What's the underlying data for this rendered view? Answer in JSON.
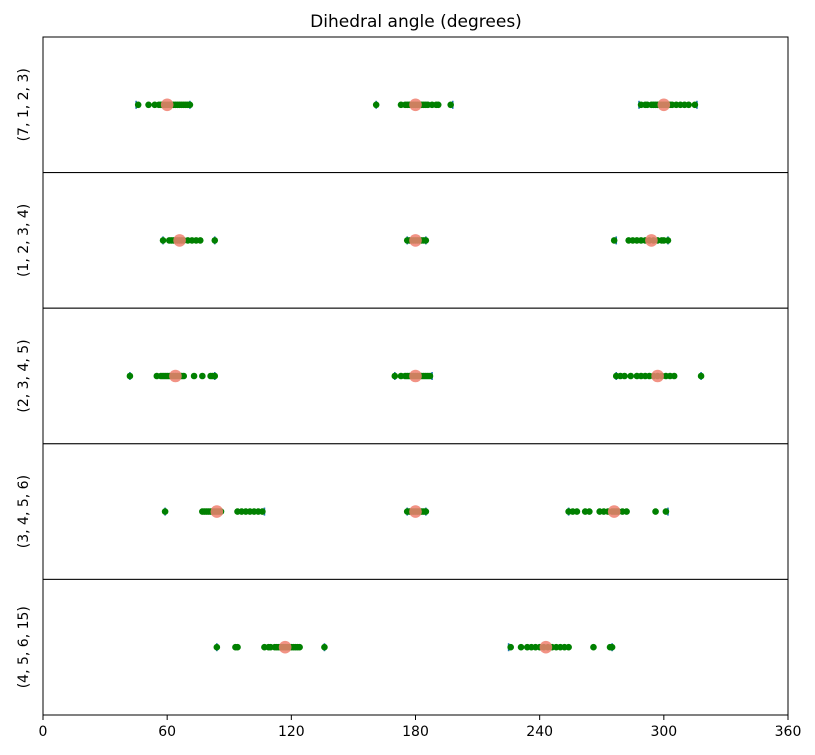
{
  "chart_data": {
    "type": "scatter",
    "title": "Dihedral angle (degrees)",
    "xlabel": "",
    "ylabel": "",
    "xlim": [
      0,
      360
    ],
    "xticks": [
      0,
      60,
      120,
      180,
      240,
      300,
      360
    ],
    "grid": false,
    "colors": {
      "samples": "#008000",
      "reference": "#f08070",
      "bounds": "#1f77b4",
      "frame": "#000000"
    },
    "rows": [
      {
        "label": "(7, 1, 2, 3)",
        "bounds": [
          45,
          71,
          161,
          198,
          288,
          316
        ],
        "samples": [
          46,
          51,
          54,
          56,
          57,
          58,
          59,
          60,
          61,
          62,
          63,
          64,
          65,
          66,
          67,
          68,
          69,
          70,
          71,
          161,
          173,
          175,
          176,
          177,
          178,
          179,
          180,
          181,
          182,
          183,
          184,
          185,
          186,
          188,
          190,
          191,
          197,
          289,
          291,
          292,
          294,
          295,
          296,
          297,
          298,
          299,
          300,
          301,
          302,
          303,
          304,
          306,
          308,
          310,
          312,
          315
        ],
        "reference": [
          60,
          180,
          300
        ]
      },
      {
        "label": "(1, 2, 3, 4)",
        "bounds": [
          58,
          83,
          176,
          185,
          277,
          302
        ],
        "samples": [
          58,
          61,
          62,
          63,
          64,
          65,
          66,
          67,
          68,
          70,
          72,
          74,
          76,
          83,
          176,
          177,
          178,
          179,
          180,
          181,
          182,
          183,
          184,
          185,
          276,
          283,
          285,
          287,
          289,
          291,
          293,
          295,
          297,
          299,
          300,
          302
        ],
        "reference": [
          66,
          180,
          294
        ]
      },
      {
        "label": "(2, 3, 4, 5)",
        "bounds": [
          42,
          83,
          170,
          188,
          277,
          318
        ],
        "samples": [
          42,
          55,
          57,
          58,
          59,
          60,
          61,
          62,
          63,
          64,
          65,
          66,
          67,
          68,
          73,
          77,
          81,
          82,
          83,
          170,
          173,
          175,
          176,
          177,
          178,
          179,
          180,
          181,
          182,
          183,
          184,
          185,
          186,
          187,
          277,
          279,
          281,
          284,
          287,
          289,
          291,
          293,
          295,
          297,
          299,
          301,
          303,
          305,
          318
        ],
        "reference": [
          64,
          180,
          297
        ]
      },
      {
        "label": "(3, 4, 5, 6)",
        "bounds": [
          59,
          107,
          176,
          185,
          254,
          302
        ],
        "samples": [
          59,
          77,
          78,
          79,
          80,
          81,
          82,
          83,
          84,
          85,
          86,
          94,
          96,
          98,
          100,
          102,
          104,
          106,
          176,
          177,
          178,
          179,
          180,
          181,
          182,
          183,
          184,
          185,
          254,
          256,
          258,
          262,
          264,
          269,
          271,
          273,
          275,
          276,
          277,
          278,
          280,
          282,
          296,
          301
        ],
        "reference": [
          84,
          180,
          276
        ]
      },
      {
        "label": "(4, 5, 6, 15)",
        "bounds": [
          84,
          136,
          225,
          275
        ],
        "samples": [
          84,
          93,
          94,
          107,
          109,
          110,
          112,
          113,
          114,
          115,
          116,
          117,
          118,
          119,
          120,
          121,
          122,
          123,
          124,
          136,
          226,
          231,
          234,
          236,
          238,
          240,
          242,
          244,
          246,
          248,
          250,
          252,
          254,
          266,
          274,
          275
        ],
        "reference": [
          117,
          243
        ]
      }
    ]
  }
}
